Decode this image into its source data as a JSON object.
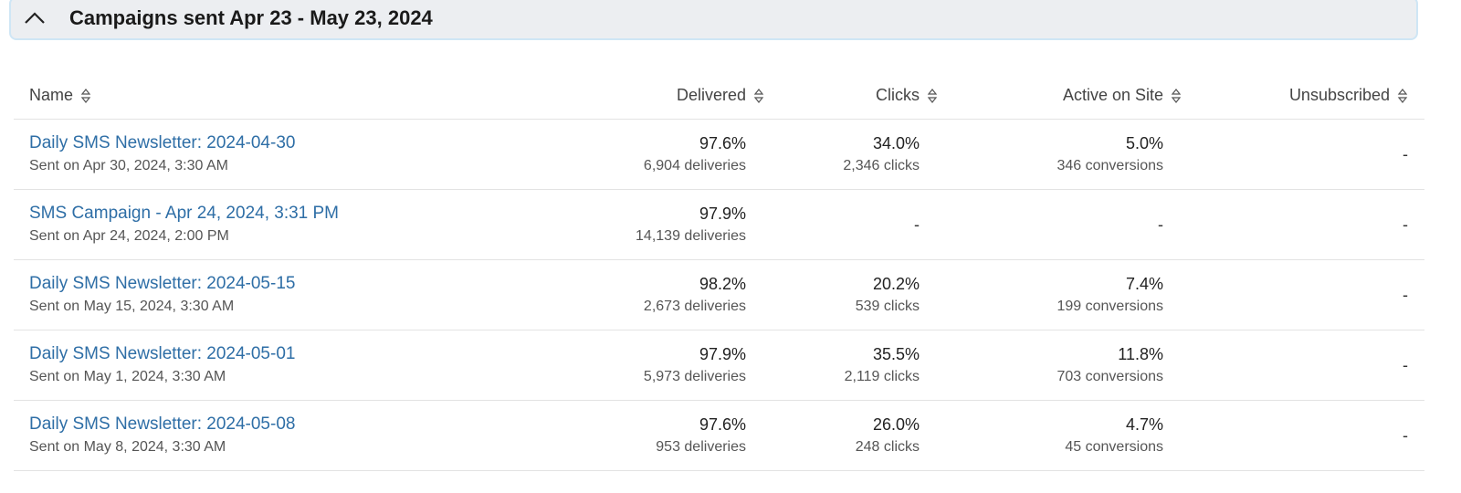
{
  "section": {
    "title": "Campaigns sent Apr 23 - May 23, 2024",
    "icon": "chevron-up-icon"
  },
  "columns": [
    "Name",
    "Delivered",
    "Clicks",
    "Active on Site",
    "Unsubscribed"
  ],
  "rows": [
    {
      "name": "Daily SMS Newsletter: 2024-04-30",
      "sent": "Sent on Apr 30, 2024, 3:30 AM",
      "delivered": "97.6%",
      "deliveries": "6,904 deliveries",
      "clicks": "34.0%",
      "clicks_count": "2,346 clicks",
      "active": "5.0%",
      "conversions": "346 conversions",
      "unsubscribed": "-"
    },
    {
      "name": "SMS Campaign - Apr 24, 2024, 3:31 PM",
      "sent": "Sent on Apr 24, 2024, 2:00 PM",
      "delivered": "97.9%",
      "deliveries": "14,139 deliveries",
      "clicks": "-",
      "clicks_count": "",
      "active": "-",
      "conversions": "",
      "unsubscribed": "-"
    },
    {
      "name": "Daily SMS Newsletter: 2024-05-15",
      "sent": "Sent on May 15, 2024, 3:30 AM",
      "delivered": "98.2%",
      "deliveries": "2,673 deliveries",
      "clicks": "20.2%",
      "clicks_count": "539 clicks",
      "active": "7.4%",
      "conversions": "199 conversions",
      "unsubscribed": "-"
    },
    {
      "name": "Daily SMS Newsletter: 2024-05-01",
      "sent": "Sent on May 1, 2024, 3:30 AM",
      "delivered": "97.9%",
      "deliveries": "5,973 deliveries",
      "clicks": "35.5%",
      "clicks_count": "2,119 clicks",
      "active": "11.8%",
      "conversions": "703 conversions",
      "unsubscribed": "-"
    },
    {
      "name": "Daily SMS Newsletter: 2024-05-08",
      "sent": "Sent on May 8, 2024, 3:30 AM",
      "delivered": "97.6%",
      "deliveries": "953 deliveries",
      "clicks": "26.0%",
      "clicks_count": "248 clicks",
      "active": "4.7%",
      "conversions": "45 conversions",
      "unsubscribed": "-"
    }
  ]
}
